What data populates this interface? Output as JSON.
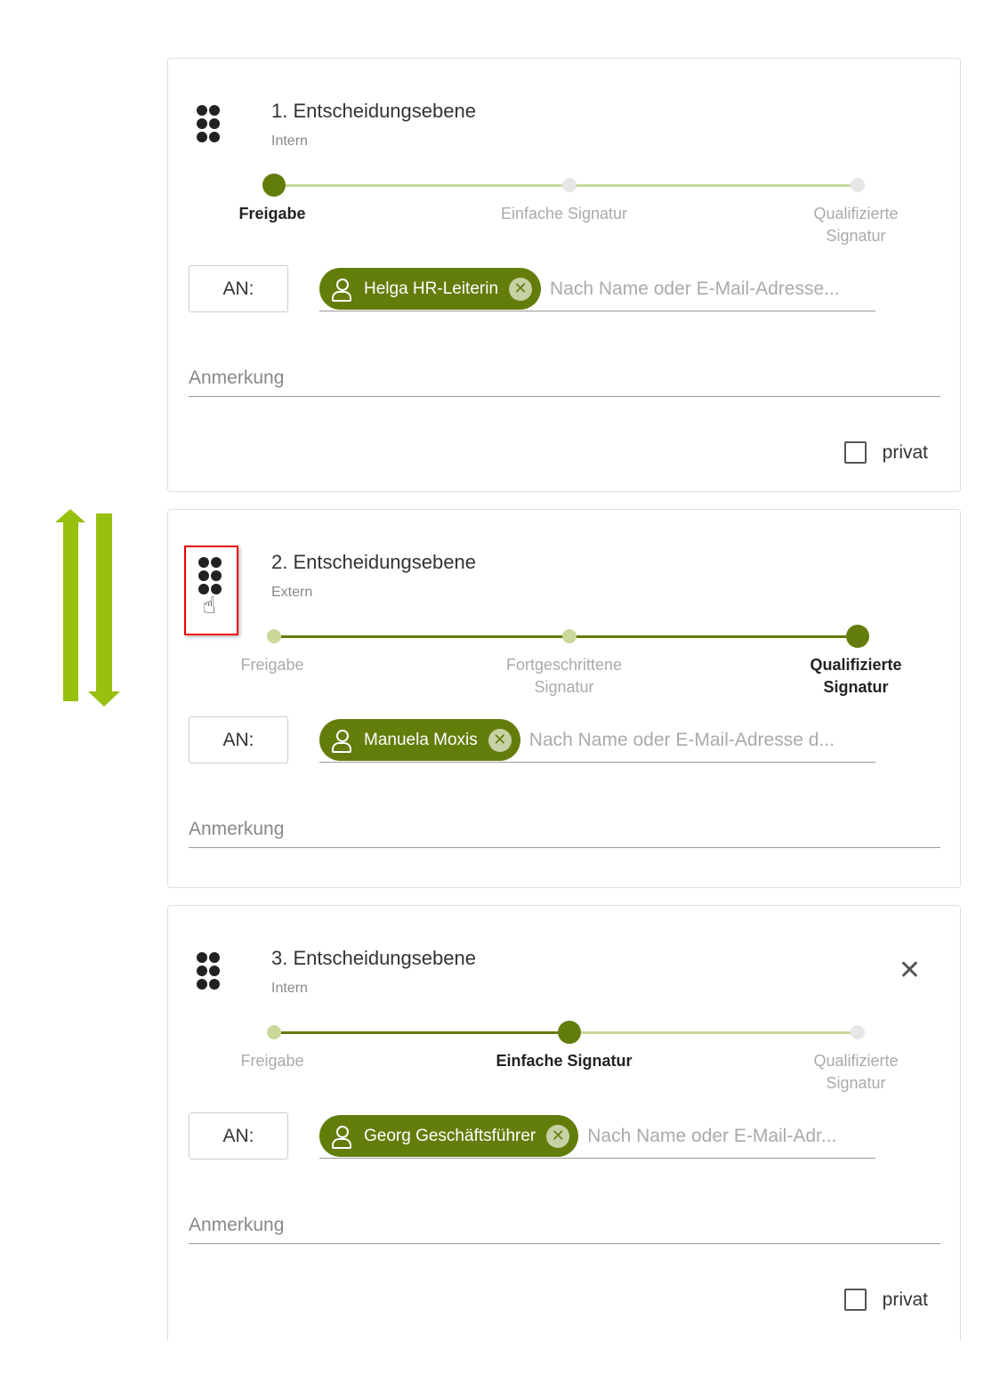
{
  "colors": {
    "accent": "#637d0b",
    "completed": "#c8d99a",
    "pending": "#e6e6e6",
    "arrow": "#97c00f",
    "highlight": "#e00000"
  },
  "levels": [
    {
      "title": "1. Entscheidungsebene",
      "type": "Intern",
      "an_label": "AN:",
      "recipient": "Helga HR-Leiterin",
      "placeholder": "Nach Name oder E-Mail-Adresse...",
      "note_placeholder": "Anmerkung",
      "private_label": "privat",
      "private_checked": false,
      "closable": false,
      "steps": [
        {
          "label": "Freigabe",
          "state": "active"
        },
        {
          "label": "Einfache Signatur",
          "state": "pending"
        },
        {
          "label": "Qualifizierte Signatur",
          "state": "pending"
        }
      ]
    },
    {
      "title": "2. Entscheidungsebene",
      "type": "Extern",
      "an_label": "AN:",
      "recipient": "Manuela Moxis",
      "placeholder": "Nach Name oder E-Mail-Adresse d...",
      "note_placeholder": "Anmerkung",
      "closable": false,
      "drag_highlighted": true,
      "steps": [
        {
          "label": "Freigabe",
          "state": "completed"
        },
        {
          "label": "Fortgeschrittene Signatur",
          "state": "completed"
        },
        {
          "label": "Qualifizierte Signatur",
          "state": "active"
        }
      ]
    },
    {
      "title": "3. Entscheidungsebene",
      "type": "Intern",
      "an_label": "AN:",
      "recipient": "Georg Geschäftsführer",
      "placeholder": "Nach Name oder E-Mail-Adr...",
      "note_placeholder": "Anmerkung",
      "private_label": "privat",
      "private_checked": false,
      "closable": true,
      "steps": [
        {
          "label": "Freigabe",
          "state": "completed"
        },
        {
          "label": "Einfache Signatur",
          "state": "active"
        },
        {
          "label": "Qualifizierte Signatur",
          "state": "pending"
        }
      ]
    }
  ],
  "icons": {
    "drag": "drag-handle-icon",
    "reorder": "swap-vertical-arrows-icon",
    "person": "person-icon",
    "remove": "close-circle-icon",
    "cursor": "hand-pointer-icon"
  }
}
